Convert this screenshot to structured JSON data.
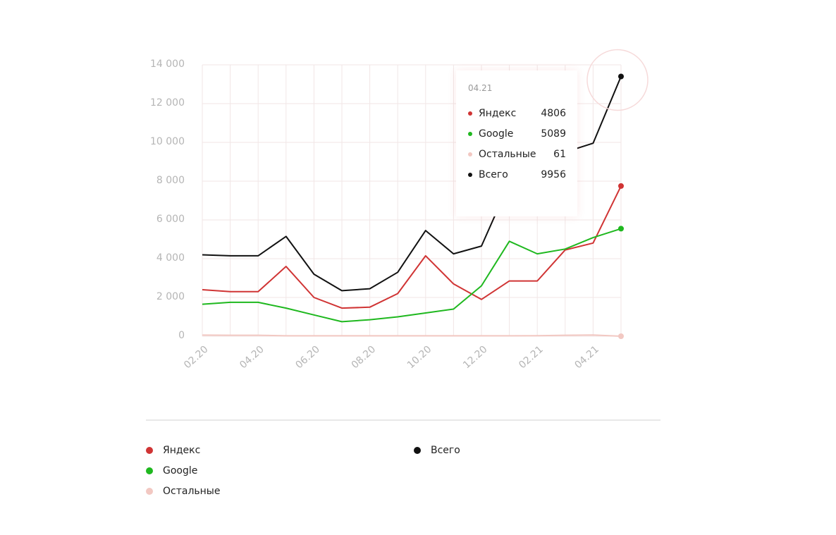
{
  "chart_data": {
    "type": "line",
    "categories": [
      "02.20",
      "03.20",
      "04.20",
      "05.20",
      "06.20",
      "07.20",
      "08.20",
      "09.20",
      "10.20",
      "11.20",
      "12.20",
      "01.21",
      "02.21",
      "03.21",
      "04.21",
      "05.21"
    ],
    "x_tick_labels": [
      "02.20",
      "04.20",
      "06.20",
      "08.20",
      "10.20",
      "12.20",
      "02.21",
      "04.21"
    ],
    "y_ticks": [
      "14 000",
      "12 000",
      "10 000",
      "8 000",
      "6 000",
      "4 000",
      "2 000",
      "0"
    ],
    "ylim": [
      0,
      14000
    ],
    "grid": true,
    "legend_position": "bottom",
    "series": [
      {
        "name": "Яндекс",
        "color": "#d03434",
        "values": [
          2400,
          2300,
          2300,
          3600,
          2000,
          1450,
          1500,
          2200,
          4150,
          2700,
          1900,
          2850,
          2850,
          4450,
          4806,
          7750
        ]
      },
      {
        "name": "Google",
        "color": "#1fb81f",
        "values": [
          1650,
          1750,
          1750,
          1450,
          1100,
          750,
          850,
          1000,
          1200,
          1400,
          2600,
          4900,
          4250,
          4500,
          5089,
          5550
        ]
      },
      {
        "name": "Остальные",
        "color": "#f2c8c2",
        "values": [
          60,
          50,
          50,
          20,
          20,
          20,
          20,
          20,
          20,
          20,
          20,
          20,
          30,
          50,
          61,
          0
        ]
      },
      {
        "name": "Всего",
        "color": "#111111",
        "values": [
          4200,
          4150,
          4150,
          5150,
          3200,
          2350,
          2450,
          3300,
          5450,
          4250,
          4650,
          7900,
          8750,
          9500,
          9956,
          13400
        ]
      }
    ]
  },
  "tooltip": {
    "date": "04.21",
    "rows": [
      {
        "name": "Яндекс",
        "value": "4806",
        "color": "#d03434"
      },
      {
        "name": "Google",
        "value": "5089",
        "color": "#1fb81f"
      },
      {
        "name": "Остальные",
        "value": "61",
        "color": "#f2c8c2"
      },
      {
        "name": "Всего",
        "value": "9956",
        "color": "#111111"
      }
    ]
  },
  "legend": [
    {
      "name": "Яндекс",
      "color": "#d03434"
    },
    {
      "name": "Google",
      "color": "#1fb81f"
    },
    {
      "name": "Остальные",
      "color": "#f2c8c2"
    },
    {
      "name": "Всего",
      "color": "#111111"
    }
  ]
}
